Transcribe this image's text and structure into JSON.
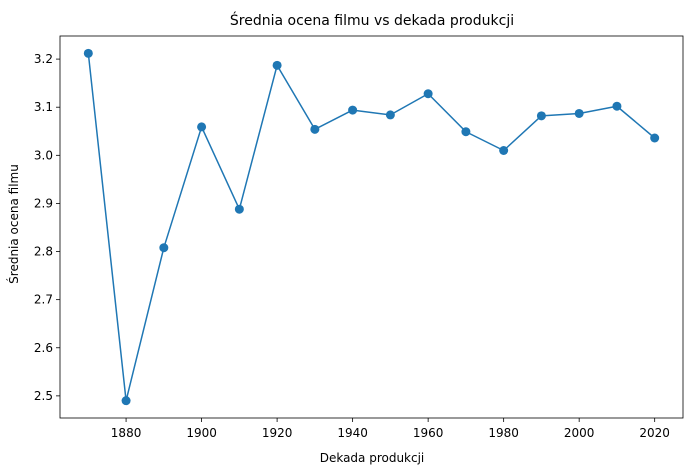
{
  "chart_data": {
    "type": "line",
    "title": "Średnia ocena filmu vs dekada produkcji",
    "xlabel": "Dekada produkcji",
    "ylabel": "Średnia ocena filmu",
    "x": [
      1870,
      1880,
      1890,
      1900,
      1910,
      1920,
      1930,
      1940,
      1950,
      1960,
      1970,
      1980,
      1990,
      2000,
      2010,
      2020
    ],
    "series": [
      {
        "values": [
          3.212,
          2.49,
          2.808,
          3.059,
          2.888,
          3.187,
          3.054,
          3.094,
          3.084,
          3.128,
          3.049,
          3.01,
          3.082,
          3.087,
          3.102,
          3.036
        ],
        "color": "#1f77b4",
        "marker": "circle"
      }
    ],
    "xlim": [
      1862.5,
      2027.5
    ],
    "ylim": [
      2.454,
      3.248
    ],
    "xticks": [
      1880,
      1900,
      1920,
      1940,
      1960,
      1980,
      2000,
      2020
    ],
    "yticks": [
      2.5,
      2.6,
      2.7,
      2.8,
      2.9,
      3.0,
      3.1,
      3.2
    ],
    "ytick_labels": [
      "2.5",
      "2.6",
      "2.7",
      "2.8",
      "2.9",
      "3.0",
      "3.1",
      "3.2"
    ],
    "grid": false,
    "legend": "none"
  }
}
